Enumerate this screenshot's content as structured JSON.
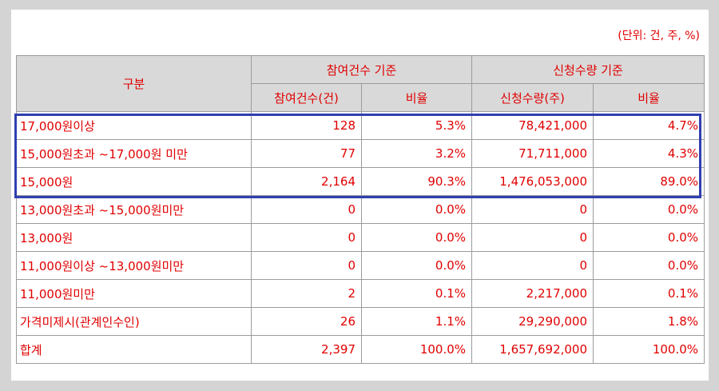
{
  "unit_note": "(단위: 건, 주, %)",
  "header": {
    "category": "구분",
    "group_count": "참여건수 기준",
    "group_quantity": "신청수량 기준",
    "col_count": "참여건수(건)",
    "col_count_ratio": "비율",
    "col_quantity": "신청수량(주)",
    "col_quantity_ratio": "비율"
  },
  "rows": [
    {
      "label": "17,000원이상",
      "count": "128",
      "count_ratio": "5.3%",
      "quantity": "78,421,000",
      "quantity_ratio": "4.7%"
    },
    {
      "label": "15,000원초과 ~17,000원 미만",
      "count": "77",
      "count_ratio": "3.2%",
      "quantity": "71,711,000",
      "quantity_ratio": "4.3%"
    },
    {
      "label": "15,000원",
      "count": "2,164",
      "count_ratio": "90.3%",
      "quantity": "1,476,053,000",
      "quantity_ratio": "89.0%"
    },
    {
      "label": "13,000원초과 ~15,000원미만",
      "count": "0",
      "count_ratio": "0.0%",
      "quantity": "0",
      "quantity_ratio": "0.0%"
    },
    {
      "label": "13,000원",
      "count": "0",
      "count_ratio": "0.0%",
      "quantity": "0",
      "quantity_ratio": "0.0%"
    },
    {
      "label": "11,000원이상 ~13,000원미만",
      "count": "0",
      "count_ratio": "0.0%",
      "quantity": "0",
      "quantity_ratio": "0.0%"
    },
    {
      "label": "11,000원미만",
      "count": "2",
      "count_ratio": "0.1%",
      "quantity": "2,217,000",
      "quantity_ratio": "0.1%"
    },
    {
      "label": "가격미제시(관계인수인)",
      "count": "26",
      "count_ratio": "1.1%",
      "quantity": "29,290,000",
      "quantity_ratio": "1.8%"
    },
    {
      "label": "합계",
      "count": "2,397",
      "count_ratio": "100.0%",
      "quantity": "1,657,692,000",
      "quantity_ratio": "100.0%"
    }
  ],
  "colors": {
    "text": "#e00000",
    "header_bg": "#d9d9d9",
    "highlight_border": "#2f3fb0"
  }
}
